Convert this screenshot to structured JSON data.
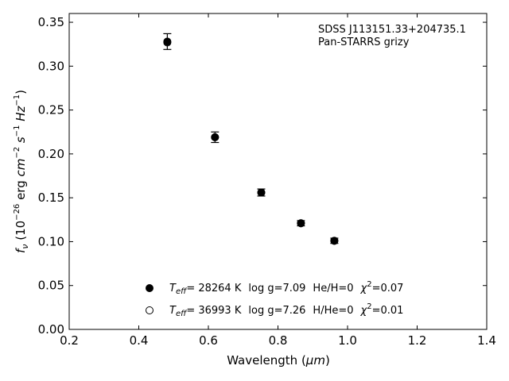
{
  "chart_data": {
    "type": "scatter",
    "xlabel_main": "Wavelength (",
    "xlabel_unit": "μm",
    "xlabel_close": ")",
    "ylabel": {
      "f": "f",
      "nu": "ν",
      "open": " (10",
      "exp_neg26": "−26",
      "erg": " erg ",
      "cm": "cm",
      "exp_neg2": "−2",
      "s": " s",
      "exp_neg1a": "−1",
      "hz": " Hz",
      "exp_neg1b": "−1",
      "close": ")"
    },
    "xlim": [
      0.2,
      1.4
    ],
    "ylim": [
      0.0,
      0.36
    ],
    "xticks": [
      0.2,
      0.4,
      0.6,
      0.8,
      1.0,
      1.2,
      1.4
    ],
    "xtick_labels": [
      "0.2",
      "0.4",
      "0.6",
      "0.8",
      "1.0",
      "1.2",
      "1.4"
    ],
    "yticks": [
      0.0,
      0.05,
      0.1,
      0.15,
      0.2,
      0.25,
      0.3,
      0.35
    ],
    "ytick_labels": [
      "0.00",
      "0.05",
      "0.10",
      "0.15",
      "0.20",
      "0.25",
      "0.30",
      "0.35"
    ],
    "grid": false,
    "annotation_lines": [
      "SDSS J113151.33+204735.1",
      "Pan-STARRS grizy"
    ],
    "annotation_placement": "top-right",
    "legend_placement": "lower-center",
    "series": [
      {
        "marker": "filled-circle",
        "x": [
          0.482,
          0.619,
          0.752,
          0.866,
          0.962
        ],
        "y": [
          0.328,
          0.219,
          0.156,
          0.121,
          0.101
        ],
        "err": [
          0.009,
          0.006,
          0.004,
          0.003,
          0.003
        ],
        "legend": {
          "teff_prefix": "T",
          "teff_sub": "eff",
          "teff_value": "= 28264 K",
          "logg": "log g=7.09",
          "comp": "He/H=0",
          "chi": "χ",
          "chi_sup": "2",
          "chi_value": "=0.07"
        }
      },
      {
        "marker": "open-circle",
        "x": [
          0.482,
          0.619,
          0.752,
          0.866,
          0.962
        ],
        "y": [
          0.327,
          0.219,
          0.156,
          0.121,
          0.101
        ],
        "err": [],
        "legend": {
          "teff_prefix": "T",
          "teff_sub": "eff",
          "teff_value": "= 36993 K",
          "logg": "log g=7.26",
          "comp": "H/He=0",
          "chi": "χ",
          "chi_sup": "2",
          "chi_value": "=0.01"
        }
      }
    ]
  }
}
